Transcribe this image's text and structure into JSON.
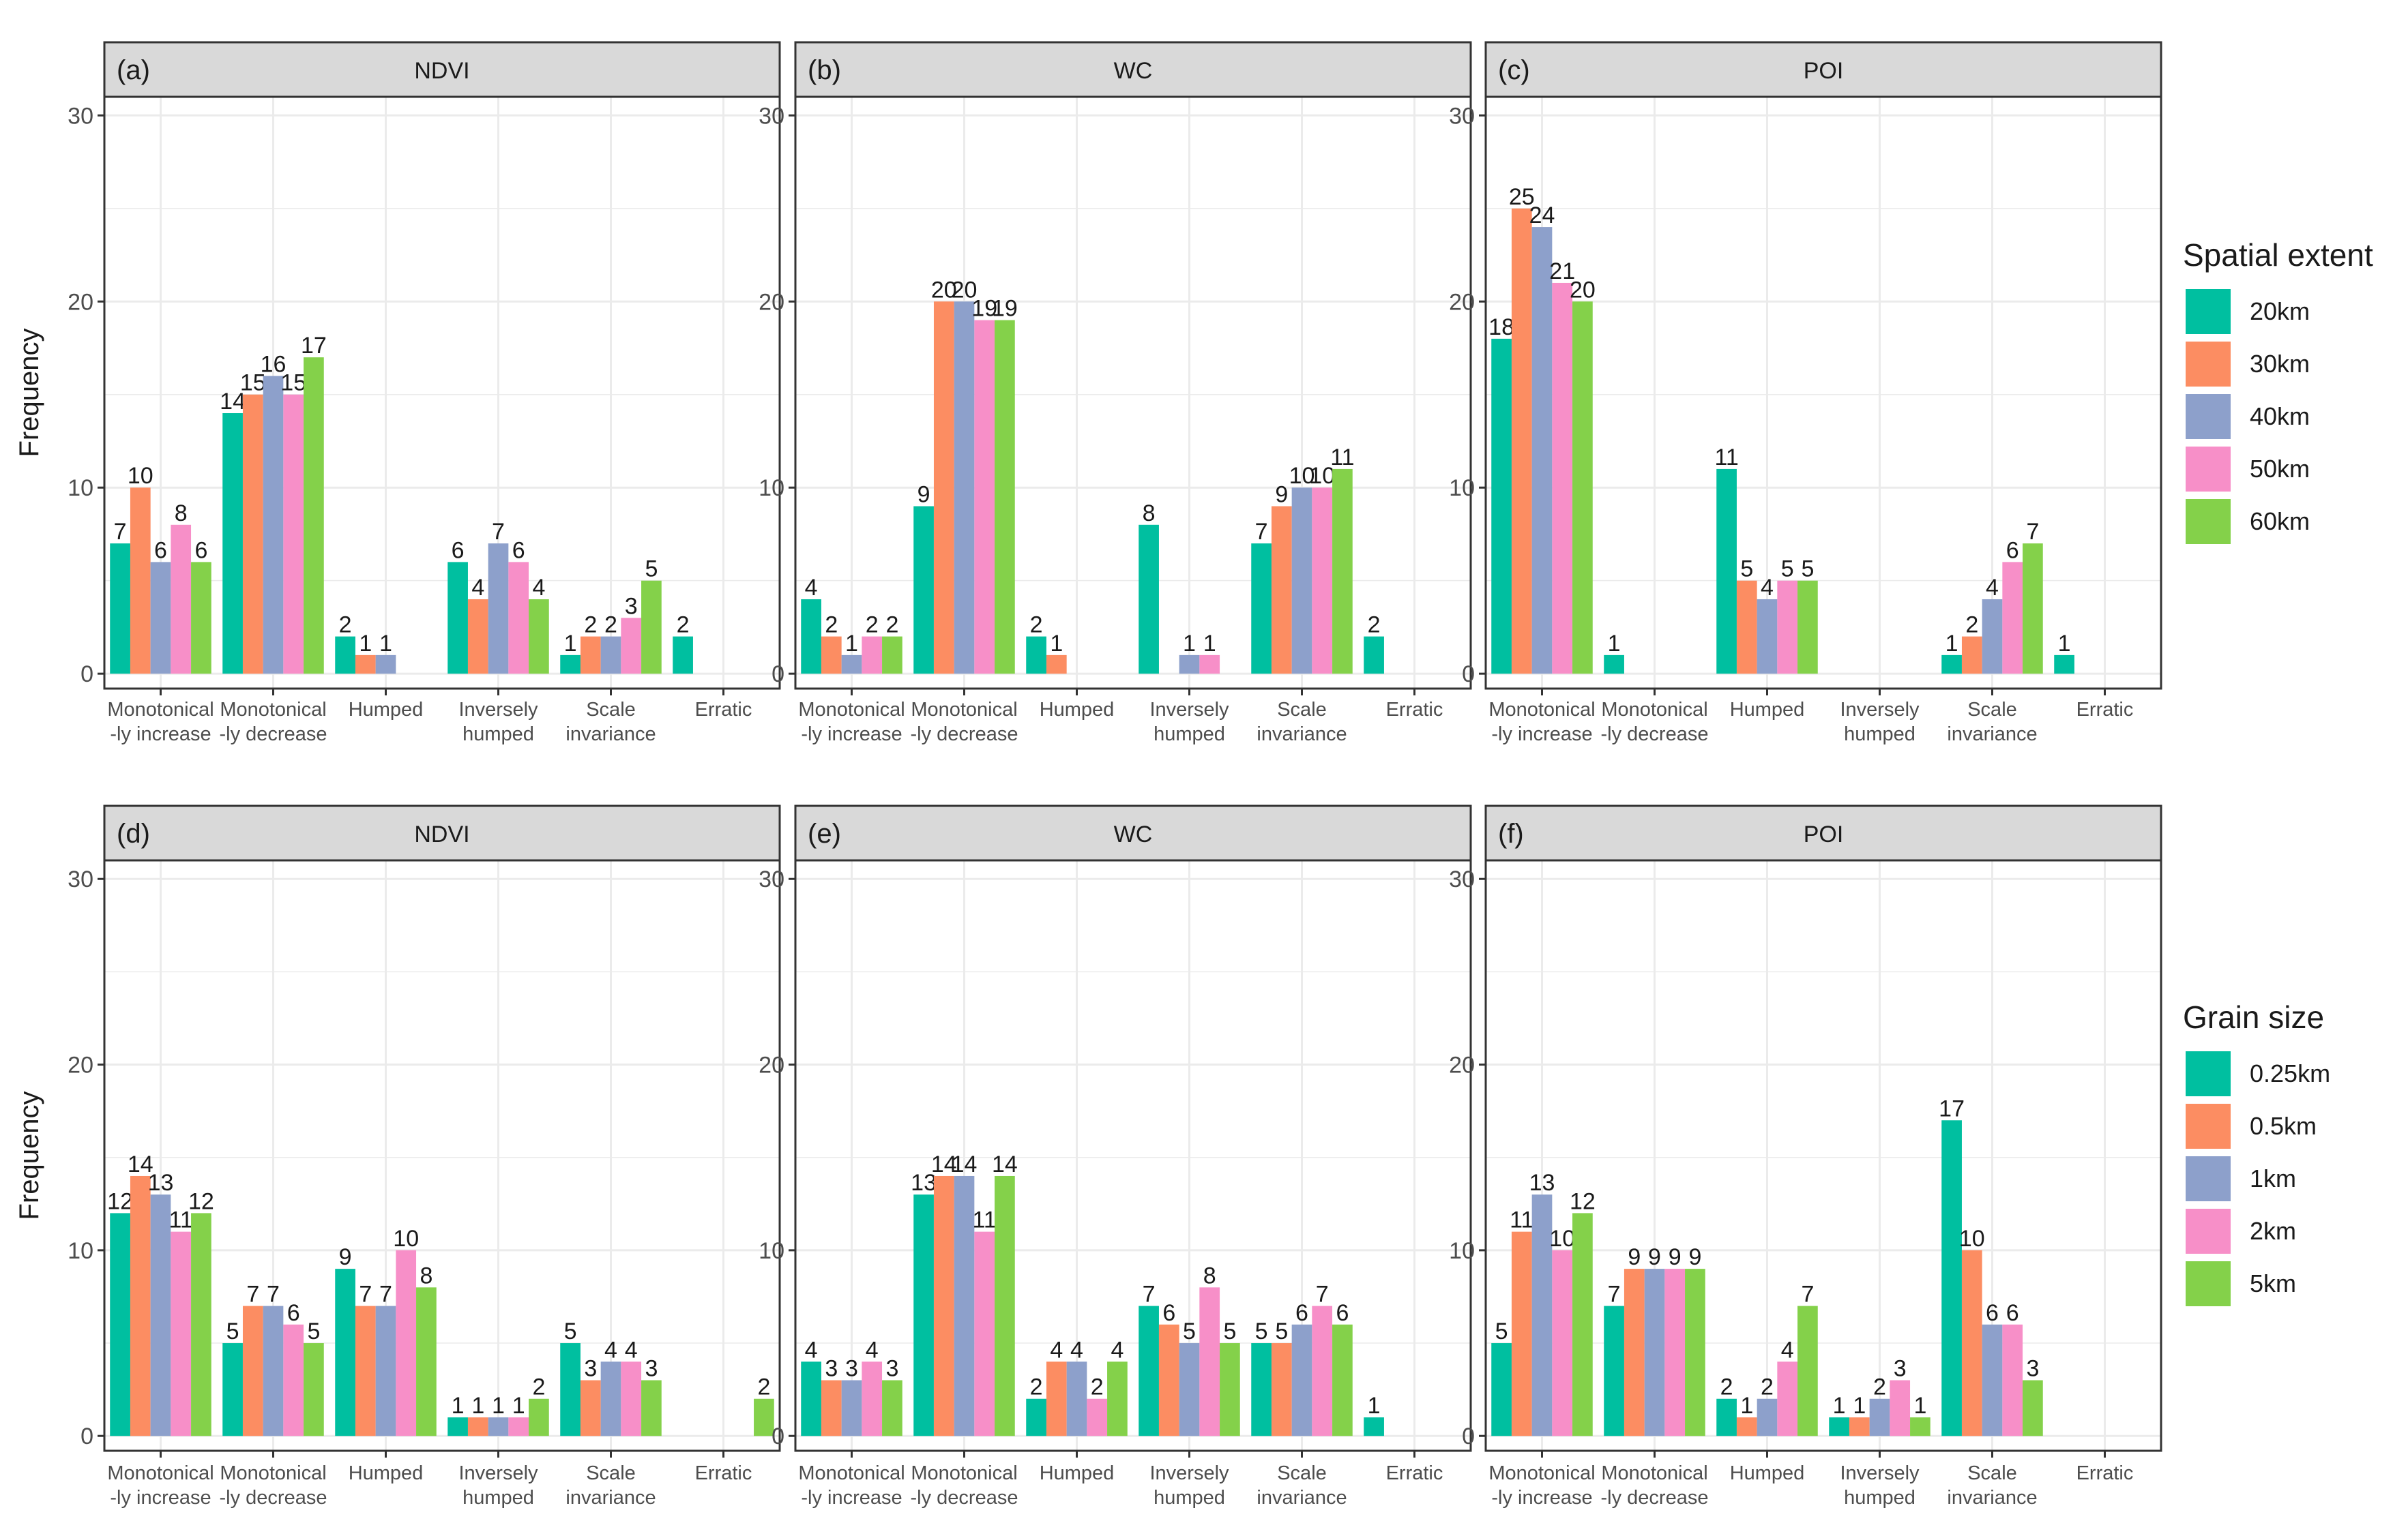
{
  "categories": [
    "Monotonical\n-ly increase",
    "Monotonical\n-ly decrease",
    "Humped",
    "Inversely\nhumped",
    "Scale\ninvariance",
    "Erratic"
  ],
  "colors": [
    "#00bfa0",
    "#fc8d62",
    "#8da0cb",
    "#f78fc8",
    "#84d14a"
  ],
  "y_axis": {
    "label": "Frequency",
    "ticks": [
      0,
      10,
      20,
      30
    ],
    "ylim": [
      -0.8,
      31
    ]
  },
  "legends": [
    {
      "title": "Spatial extent",
      "items": [
        "20km",
        "30km",
        "40km",
        "50km",
        "60km"
      ]
    },
    {
      "title": "Grain size",
      "items": [
        "0.25km",
        "0.5km",
        "1km",
        "2km",
        "5km"
      ]
    }
  ],
  "chart_data": [
    {
      "type": "bar",
      "tag": "(a)",
      "title": "NDVI",
      "legend": "Spatial extent",
      "series": [
        {
          "name": "20km",
          "values": [
            7,
            14,
            2,
            6,
            1,
            2
          ]
        },
        {
          "name": "30km",
          "values": [
            10,
            15,
            1,
            4,
            2,
            null
          ]
        },
        {
          "name": "40km",
          "values": [
            6,
            16,
            1,
            7,
            2,
            null
          ]
        },
        {
          "name": "50km",
          "values": [
            8,
            15,
            null,
            6,
            3,
            null
          ]
        },
        {
          "name": "60km",
          "values": [
            6,
            17,
            null,
            4,
            5,
            null
          ]
        }
      ]
    },
    {
      "type": "bar",
      "tag": "(b)",
      "title": "WC",
      "legend": "Spatial extent",
      "series": [
        {
          "name": "20km",
          "values": [
            4,
            9,
            2,
            8,
            7,
            2
          ]
        },
        {
          "name": "30km",
          "values": [
            2,
            20,
            1,
            null,
            9,
            null
          ]
        },
        {
          "name": "40km",
          "values": [
            1,
            20,
            null,
            1,
            10,
            null
          ]
        },
        {
          "name": "50km",
          "values": [
            2,
            19,
            null,
            1,
            10,
            null
          ]
        },
        {
          "name": "60km",
          "values": [
            2,
            19,
            null,
            null,
            11,
            null
          ]
        }
      ]
    },
    {
      "type": "bar",
      "tag": "(c)",
      "title": "POI",
      "legend": "Spatial extent",
      "series": [
        {
          "name": "20km",
          "values": [
            18,
            1,
            11,
            null,
            1,
            1
          ]
        },
        {
          "name": "30km",
          "values": [
            25,
            null,
            5,
            null,
            2,
            null
          ]
        },
        {
          "name": "40km",
          "values": [
            24,
            null,
            4,
            null,
            4,
            null
          ]
        },
        {
          "name": "50km",
          "values": [
            21,
            null,
            5,
            null,
            6,
            null
          ]
        },
        {
          "name": "60km",
          "values": [
            20,
            null,
            5,
            null,
            7,
            null
          ]
        }
      ]
    },
    {
      "type": "bar",
      "tag": "(d)",
      "title": "NDVI",
      "legend": "Grain size",
      "series": [
        {
          "name": "0.25km",
          "values": [
            12,
            5,
            9,
            1,
            5,
            null
          ]
        },
        {
          "name": "0.5km",
          "values": [
            14,
            7,
            7,
            1,
            3,
            null
          ]
        },
        {
          "name": "1km",
          "values": [
            13,
            7,
            7,
            1,
            4,
            null
          ]
        },
        {
          "name": "2km",
          "values": [
            11,
            6,
            10,
            1,
            4,
            null
          ]
        },
        {
          "name": "5km",
          "values": [
            12,
            5,
            8,
            2,
            3,
            2
          ]
        }
      ]
    },
    {
      "type": "bar",
      "tag": "(e)",
      "title": "WC",
      "legend": "Grain size",
      "series": [
        {
          "name": "0.25km",
          "values": [
            4,
            13,
            2,
            7,
            5,
            1
          ]
        },
        {
          "name": "0.5km",
          "values": [
            3,
            14,
            4,
            6,
            5,
            null
          ]
        },
        {
          "name": "1km",
          "values": [
            3,
            14,
            4,
            5,
            6,
            null
          ]
        },
        {
          "name": "2km",
          "values": [
            4,
            11,
            2,
            8,
            7,
            null
          ]
        },
        {
          "name": "5km",
          "values": [
            3,
            14,
            4,
            5,
            6,
            null
          ]
        }
      ]
    },
    {
      "type": "bar",
      "tag": "(f)",
      "title": "POI",
      "legend": "Grain size",
      "series": [
        {
          "name": "0.25km",
          "values": [
            5,
            7,
            2,
            1,
            17,
            null
          ]
        },
        {
          "name": "0.5km",
          "values": [
            11,
            9,
            1,
            1,
            10,
            null
          ]
        },
        {
          "name": "1km",
          "values": [
            13,
            9,
            2,
            2,
            6,
            null
          ]
        },
        {
          "name": "2km",
          "values": [
            10,
            9,
            4,
            3,
            6,
            null
          ]
        },
        {
          "name": "5km",
          "values": [
            12,
            9,
            7,
            1,
            3,
            null
          ]
        }
      ]
    }
  ]
}
